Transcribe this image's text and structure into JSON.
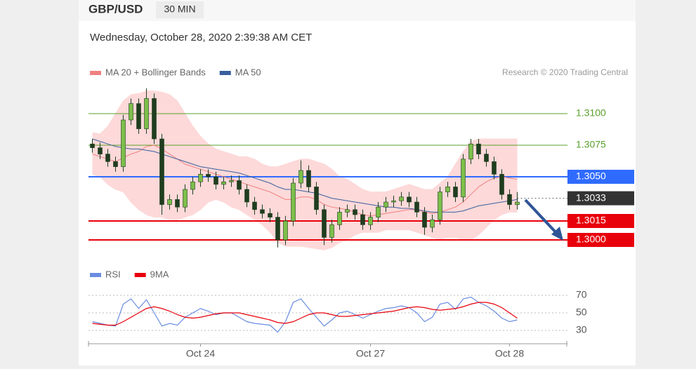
{
  "header": {
    "symbol": "GBP/USD",
    "timeframe": "30 MIN",
    "timestamp": "Wednesday, October 28, 2020 2:39:38 AM CET",
    "credit": "Research © 2020 Trading Central"
  },
  "chart_data": [
    {
      "type": "candlestick",
      "categories": [
        null,
        null,
        null,
        null,
        null,
        null,
        null,
        null,
        null,
        null,
        null,
        null,
        null,
        null,
        "Oct 24",
        null,
        null,
        null,
        null,
        null,
        null,
        null,
        null,
        null,
        null,
        null,
        null,
        null,
        null,
        null,
        null,
        null,
        null,
        null,
        null,
        null,
        "Oct 27",
        null,
        null,
        null,
        null,
        null,
        null,
        null,
        null,
        null,
        null,
        null,
        null,
        null,
        null,
        null,
        null,
        null,
        "Oct 28",
        null
      ],
      "open": [
        1.3076,
        1.3073,
        1.3068,
        1.3062,
        1.3058,
        1.3095,
        1.3108,
        1.3088,
        1.3112,
        1.308,
        1.3028,
        1.3032,
        1.3026,
        1.304,
        1.3046,
        1.3052,
        1.305,
        1.3044,
        1.3046,
        1.3047,
        1.304,
        1.303,
        1.3024,
        1.3021,
        1.3018,
        1.3,
        1.3015,
        1.3045,
        1.3055,
        1.3042,
        1.3024,
        1.3002,
        1.3012,
        1.3022,
        1.3024,
        1.302,
        1.3012,
        1.3018,
        1.3026,
        1.303,
        1.3031,
        1.3034,
        1.303,
        1.3022,
        1.301,
        1.3016,
        1.3038,
        1.3042,
        1.3034,
        1.3064,
        1.3076,
        1.3068,
        1.3062,
        1.3052,
        1.3036,
        1.3028
      ],
      "high": [
        1.308,
        1.3077,
        1.3072,
        1.3066,
        1.3099,
        1.3112,
        1.3112,
        1.312,
        1.3116,
        1.3084,
        1.3036,
        1.3036,
        1.3044,
        1.305,
        1.3056,
        1.3056,
        1.3054,
        1.305,
        1.3051,
        1.3051,
        1.3044,
        1.3034,
        1.3028,
        1.3025,
        1.3022,
        1.3019,
        1.3049,
        1.3063,
        1.3059,
        1.3046,
        1.3028,
        1.3016,
        1.3026,
        1.3028,
        1.3028,
        1.3024,
        1.3022,
        1.303,
        1.3034,
        1.3035,
        1.3038,
        1.3038,
        1.3034,
        1.3026,
        1.302,
        1.3042,
        1.3046,
        1.3046,
        1.3068,
        1.308,
        1.308,
        1.3072,
        1.3066,
        1.3056,
        1.304,
        1.3038
      ],
      "low": [
        1.3069,
        1.3064,
        1.3058,
        1.3054,
        1.3054,
        1.3091,
        1.3084,
        1.3084,
        1.3076,
        1.302,
        1.3024,
        1.3022,
        1.3022,
        1.3036,
        1.3042,
        1.3046,
        1.304,
        1.304,
        1.3042,
        1.3036,
        1.3026,
        1.302,
        1.3017,
        1.3014,
        1.2994,
        1.2996,
        1.3011,
        1.3041,
        1.3038,
        1.302,
        1.2996,
        1.2998,
        1.3008,
        1.3018,
        1.3016,
        1.3008,
        1.3008,
        1.3014,
        1.3022,
        1.3026,
        1.3027,
        1.3026,
        1.3018,
        1.3004,
        1.3006,
        1.3012,
        1.3034,
        1.303,
        1.303,
        1.306,
        1.3064,
        1.3058,
        1.3048,
        1.3032,
        1.3024,
        1.3024
      ],
      "close": [
        1.3073,
        1.3068,
        1.3062,
        1.3058,
        1.3095,
        1.3108,
        1.3088,
        1.3112,
        1.308,
        1.3028,
        1.3032,
        1.3026,
        1.304,
        1.3046,
        1.3052,
        1.305,
        1.3044,
        1.3046,
        1.3047,
        1.304,
        1.303,
        1.3024,
        1.3021,
        1.3018,
        1.3,
        1.3015,
        1.3045,
        1.3055,
        1.3042,
        1.3024,
        1.3002,
        1.3012,
        1.3022,
        1.3024,
        1.302,
        1.3012,
        1.3018,
        1.3026,
        1.303,
        1.3031,
        1.3034,
        1.303,
        1.3022,
        1.301,
        1.3016,
        1.3038,
        1.3042,
        1.3034,
        1.3064,
        1.3076,
        1.3068,
        1.3062,
        1.3052,
        1.3036,
        1.3028,
        1.303
      ],
      "up_color": "#7cbf4a",
      "down_color": "#1f3d1f",
      "series": [
        {
          "name": "MA 20 + Bollinger Bands",
          "color": "#f08080",
          "values": [
            1.3068,
            1.3066,
            1.3064,
            1.3062,
            1.3065,
            1.3068,
            1.307,
            1.3074,
            1.3075,
            1.3072,
            1.3068,
            1.3064,
            1.306,
            1.3058,
            1.3056,
            1.3054,
            1.3052,
            1.305,
            1.3048,
            1.3046,
            1.3044,
            1.3042,
            1.304,
            1.3038,
            1.3035,
            1.3032,
            1.3032,
            1.3034,
            1.3034,
            1.3032,
            1.3028,
            1.3026,
            1.3025,
            1.3024,
            1.3022,
            1.302,
            1.3019,
            1.302,
            1.3021,
            1.3022,
            1.3023,
            1.3024,
            1.3024,
            1.3022,
            1.3021,
            1.3022,
            1.3024,
            1.3026,
            1.303,
            1.3036,
            1.3042,
            1.3046,
            1.3049,
            1.305,
            1.3049,
            1.3048
          ],
          "upper": [
            1.3085,
            1.3084,
            1.309,
            1.31,
            1.311,
            1.3115,
            1.3116,
            1.3118,
            1.3118,
            1.3117,
            1.3115,
            1.311,
            1.31,
            1.309,
            1.3082,
            1.3076,
            1.3072,
            1.307,
            1.3068,
            1.3066,
            1.3066,
            1.3064,
            1.306,
            1.3058,
            1.3058,
            1.306,
            1.3062,
            1.3064,
            1.3064,
            1.3062,
            1.306,
            1.3056,
            1.305,
            1.3048,
            1.3044,
            1.304,
            1.3038,
            1.3038,
            1.3038,
            1.304,
            1.3042,
            1.3044,
            1.3042,
            1.304,
            1.304,
            1.3045,
            1.305,
            1.306,
            1.307,
            1.3078,
            1.308,
            1.308,
            1.308,
            1.308,
            1.308,
            1.308
          ],
          "lower": [
            1.3052,
            1.305,
            1.3044,
            1.304,
            1.3038,
            1.303,
            1.3024,
            1.302,
            1.3018,
            1.3018,
            1.3016,
            1.3016,
            1.3018,
            1.302,
            1.3024,
            1.303,
            1.3032,
            1.303,
            1.3026,
            1.3024,
            1.302,
            1.3016,
            1.3012,
            1.3006,
            1.2998,
            1.2995,
            1.2995,
            1.2995,
            1.2994,
            1.2993,
            1.2992,
            1.2994,
            1.2998,
            1.3,
            1.3004,
            1.3006,
            1.3006,
            1.3006,
            1.3008,
            1.3008,
            1.3008,
            1.3008,
            1.3006,
            1.3004,
            1.3002,
            1.3,
            1.3002,
            1.3002,
            1.3,
            1.3,
            1.3004,
            1.301,
            1.3016,
            1.302,
            1.3022,
            1.3022
          ],
          "band_color": "#fdd9d9"
        },
        {
          "name": "MA 50",
          "color": "#3a5f9e",
          "values": [
            1.308,
            1.3078,
            1.3076,
            1.3074,
            1.3073,
            1.3072,
            1.3072,
            1.3071,
            1.307,
            1.3068,
            1.3066,
            1.3064,
            1.3062,
            1.306,
            1.3058,
            1.3057,
            1.3056,
            1.3055,
            1.3054,
            1.3053,
            1.3051,
            1.3049,
            1.3047,
            1.3045,
            1.3042,
            1.304,
            1.304,
            1.3039,
            1.3038,
            1.3037,
            1.3035,
            1.3033,
            1.3032,
            1.3031,
            1.303,
            1.3029,
            1.3028,
            1.3027,
            1.3026,
            1.3026,
            1.3025,
            1.3025,
            1.3024,
            1.3023,
            1.3022,
            1.3022,
            1.3022,
            1.3022,
            1.3023,
            1.3025,
            1.3027,
            1.3028,
            1.3029,
            1.303,
            1.3031,
            1.3032
          ]
        }
      ],
      "levels": [
        {
          "value": 1.31,
          "label": "1.3100",
          "color": "#5aa02c",
          "boxed": false
        },
        {
          "value": 1.3075,
          "label": "1.3075",
          "color": "#5aa02c",
          "boxed": false
        },
        {
          "value": 1.305,
          "label": "1.3050",
          "color": "#2f6bff",
          "boxed": true
        },
        {
          "value": 1.3033,
          "label": "1.3033",
          "color": "#333333",
          "boxed": true,
          "dotted": true
        },
        {
          "value": 1.3015,
          "label": "1.3015",
          "color": "#e8000b",
          "boxed": true
        },
        {
          "value": 1.3,
          "label": "1.3000",
          "color": "#e8000b",
          "boxed": true
        }
      ],
      "ylim": [
        1.2988,
        1.3125
      ]
    },
    {
      "type": "line",
      "series": [
        {
          "name": "RSI",
          "color": "#6a8de0",
          "values": [
            40,
            38,
            36,
            35,
            60,
            66,
            55,
            65,
            50,
            35,
            38,
            36,
            45,
            50,
            55,
            52,
            48,
            50,
            50,
            45,
            40,
            38,
            37,
            36,
            28,
            40,
            62,
            66,
            55,
            45,
            35,
            42,
            50,
            52,
            48,
            44,
            48,
            52,
            55,
            56,
            58,
            56,
            50,
            40,
            45,
            60,
            62,
            54,
            66,
            68,
            62,
            58,
            52,
            44,
            40,
            42
          ]
        },
        {
          "name": "9MA",
          "color": "#e8000b",
          "values": [
            38,
            37,
            36,
            36,
            40,
            45,
            50,
            55,
            57,
            55,
            52,
            48,
            45,
            44,
            45,
            47,
            49,
            50,
            50,
            50,
            48,
            46,
            44,
            42,
            39,
            38,
            40,
            44,
            48,
            50,
            50,
            48,
            46,
            46,
            47,
            48,
            49,
            50,
            51,
            52,
            54,
            56,
            57,
            56,
            54,
            53,
            54,
            55,
            57,
            60,
            62,
            62,
            60,
            56,
            50,
            44
          ]
        }
      ],
      "ylim": [
        20,
        80
      ],
      "yticks": [
        30,
        50,
        70
      ]
    }
  ]
}
